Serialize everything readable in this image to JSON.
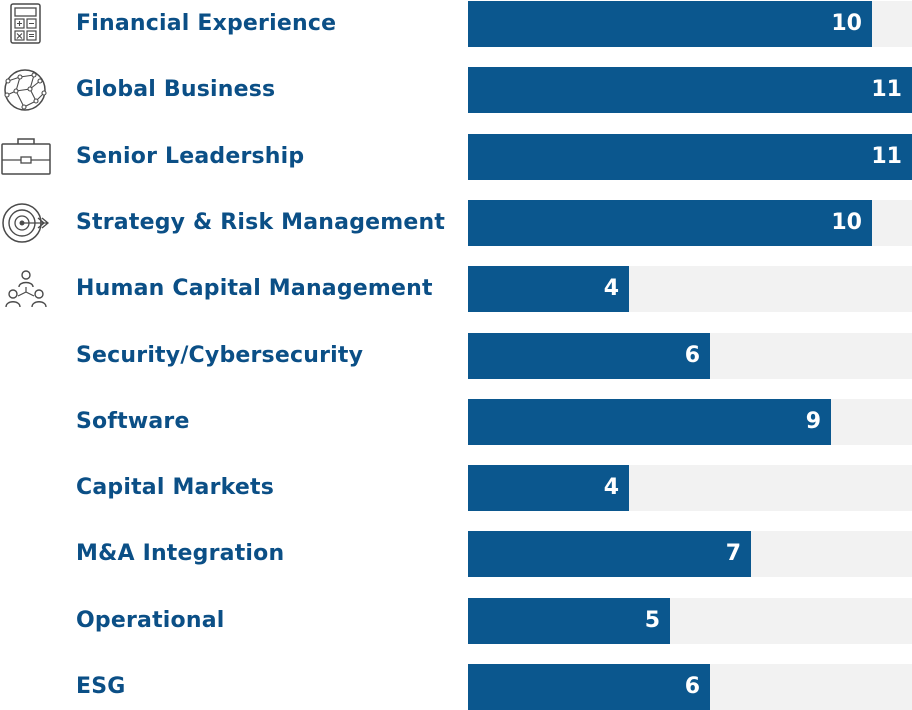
{
  "colors": {
    "bar": "#0b578e",
    "track": "#f2f2f2",
    "label": "#0b4f86",
    "value_text": "#ffffff",
    "icon_stroke": "#4a4a4a"
  },
  "chart_data": {
    "type": "bar",
    "orientation": "horizontal",
    "title": "",
    "xlabel": "",
    "ylabel": "",
    "xlim": [
      0,
      11
    ],
    "grid": false,
    "categories": [
      "Financial Experience",
      "Global Business",
      "Senior Leadership",
      "Strategy & Risk Management",
      "Human Capital Management",
      "Security/Cybersecurity",
      "Software",
      "Capital Markets",
      "M&A Integration",
      "Operational",
      "ESG"
    ],
    "values": [
      10,
      11,
      11,
      10,
      4,
      6,
      9,
      4,
      7,
      5,
      6
    ],
    "icons": [
      "calculator-icon",
      "globe-network-icon",
      "briefcase-icon",
      "target-icon",
      "people-org-icon",
      "",
      "",
      "",
      "",
      "",
      ""
    ]
  }
}
